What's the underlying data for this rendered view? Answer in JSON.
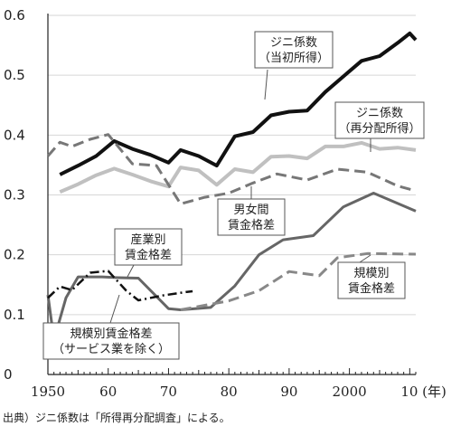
{
  "chart_data": {
    "type": "line",
    "title": "",
    "xlabel": "",
    "ylabel": "",
    "xlim": [
      1950,
      2011
    ],
    "ylim": [
      0,
      0.6
    ],
    "yticks": [
      "0",
      "0.1",
      "0.2",
      "0.3",
      "0.4",
      "0.5",
      "0.6"
    ],
    "xticks": [
      {
        "x": 1950,
        "label": "1950"
      },
      {
        "x": 1960,
        "label": "60"
      },
      {
        "x": 1970,
        "label": "70"
      },
      {
        "x": 1980,
        "label": "80"
      },
      {
        "x": 1990,
        "label": "90"
      },
      {
        "x": 2000,
        "label": "2000"
      },
      {
        "x": 2010,
        "label": "10 (年)"
      }
    ],
    "grid": true,
    "note": "出典）ジニ係数は「所得再分配調査」による。",
    "series": [
      {
        "name": "ジニ係数（当初所得）",
        "color": "#111111",
        "style": "solid",
        "width": 4,
        "points": [
          [
            1952,
            0.334
          ],
          [
            1955,
            0.349
          ],
          [
            1958,
            0.365
          ],
          [
            1961,
            0.39
          ],
          [
            1964,
            0.377
          ],
          [
            1967,
            0.367
          ],
          [
            1970,
            0.354
          ],
          [
            1972,
            0.375
          ],
          [
            1975,
            0.365
          ],
          [
            1978,
            0.349
          ],
          [
            1981,
            0.398
          ],
          [
            1984,
            0.405
          ],
          [
            1987,
            0.433
          ],
          [
            1990,
            0.439
          ],
          [
            1993,
            0.441
          ],
          [
            1996,
            0.472
          ],
          [
            1999,
            0.498
          ],
          [
            2002,
            0.524
          ],
          [
            2005,
            0.532
          ],
          [
            2008,
            0.554
          ],
          [
            2010,
            0.57
          ],
          [
            2011,
            0.559
          ]
        ]
      },
      {
        "name": "ジニ係数（再分配所得）",
        "color": "#c0c0c0",
        "style": "solid",
        "width": 4,
        "points": [
          [
            1952,
            0.305
          ],
          [
            1955,
            0.318
          ],
          [
            1958,
            0.333
          ],
          [
            1961,
            0.344
          ],
          [
            1964,
            0.334
          ],
          [
            1967,
            0.323
          ],
          [
            1970,
            0.314
          ],
          [
            1972,
            0.346
          ],
          [
            1975,
            0.341
          ],
          [
            1978,
            0.317
          ],
          [
            1981,
            0.343
          ],
          [
            1984,
            0.338
          ],
          [
            1987,
            0.364
          ],
          [
            1990,
            0.365
          ],
          [
            1993,
            0.361
          ],
          [
            1996,
            0.381
          ],
          [
            1999,
            0.381
          ],
          [
            2002,
            0.387
          ],
          [
            2005,
            0.377
          ],
          [
            2008,
            0.379
          ],
          [
            2011,
            0.375
          ]
        ]
      },
      {
        "name": "男女間賃金格差",
        "color": "#777777",
        "style": "dashed",
        "width": 3,
        "points": [
          [
            1950,
            0.365
          ],
          [
            1952,
            0.388
          ],
          [
            1954,
            0.381
          ],
          [
            1957,
            0.393
          ],
          [
            1960,
            0.401
          ],
          [
            1964,
            0.352
          ],
          [
            1968,
            0.349
          ],
          [
            1972,
            0.285
          ],
          [
            1976,
            0.296
          ],
          [
            1980,
            0.303
          ],
          [
            1984,
            0.32
          ],
          [
            1988,
            0.335
          ],
          [
            1993,
            0.325
          ],
          [
            1998,
            0.343
          ],
          [
            2003,
            0.338
          ],
          [
            2008,
            0.315
          ],
          [
            2011,
            0.307
          ]
        ]
      },
      {
        "name": "産業別賃金格差",
        "color": "#666666",
        "style": "solid",
        "width": 3,
        "points": [
          [
            1950,
            0.133
          ],
          [
            1951,
            0.058
          ],
          [
            1953,
            0.128
          ],
          [
            1955,
            0.163
          ],
          [
            1959,
            0.163
          ],
          [
            1961,
            0.162
          ],
          [
            1965,
            0.161
          ],
          [
            1970,
            0.11
          ],
          [
            1972,
            0.108
          ],
          [
            1977,
            0.112
          ],
          [
            1981,
            0.148
          ],
          [
            1985,
            0.2
          ],
          [
            1989,
            0.225
          ],
          [
            1994,
            0.232
          ],
          [
            1999,
            0.28
          ],
          [
            2004,
            0.303
          ],
          [
            2011,
            0.273
          ]
        ]
      },
      {
        "name": "規模別賃金格差",
        "color": "#888888",
        "style": "dashed",
        "width": 3,
        "points": [
          [
            1972,
            0.108
          ],
          [
            1980,
            0.123
          ],
          [
            1985,
            0.14
          ],
          [
            1990,
            0.172
          ],
          [
            1995,
            0.165
          ],
          [
            1998,
            0.195
          ],
          [
            2003,
            0.202
          ],
          [
            2011,
            0.201
          ]
        ]
      },
      {
        "name": "規模別賃金格差（サービス業を除く）",
        "color": "#111111",
        "style": "dashdot",
        "width": 2.5,
        "points": [
          [
            1950,
            0.128
          ],
          [
            1952,
            0.147
          ],
          [
            1954,
            0.141
          ],
          [
            1957,
            0.17
          ],
          [
            1960,
            0.173
          ],
          [
            1963,
            0.14
          ],
          [
            1965,
            0.124
          ],
          [
            1969,
            0.132
          ],
          [
            1973,
            0.138
          ],
          [
            1974,
            0.139
          ]
        ]
      }
    ],
    "callouts": [
      {
        "series": 0,
        "lines": [
          "ジニ係数",
          "（当初所得）"
        ]
      },
      {
        "series": 1,
        "lines": [
          "ジニ係数",
          "（再分配所得）"
        ]
      },
      {
        "series": 2,
        "lines": [
          "男女間",
          "賃金格差"
        ]
      },
      {
        "series": 3,
        "lines": [
          "産業別",
          "賃金格差"
        ]
      },
      {
        "series": 4,
        "lines": [
          "規模別",
          "賃金格差"
        ]
      },
      {
        "series": 5,
        "lines": [
          "規模別賃金格差",
          "（サービス業を除く）"
        ]
      }
    ]
  }
}
